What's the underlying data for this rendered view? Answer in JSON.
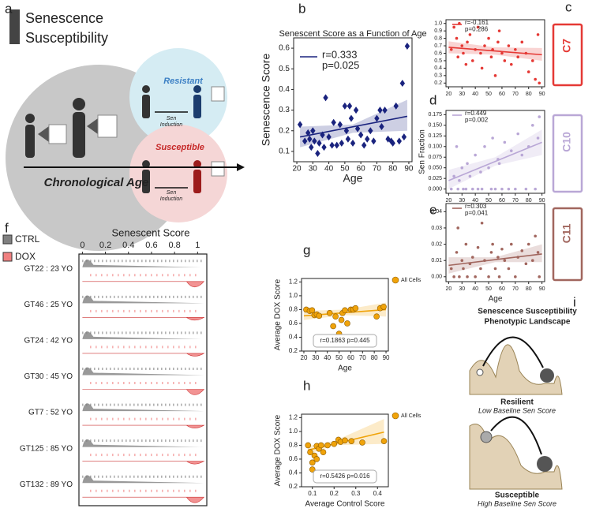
{
  "panel_letters": [
    "a",
    "b",
    "c",
    "d",
    "e",
    "f",
    "g",
    "h",
    "i"
  ],
  "diagram_a": {
    "title_line1": "Senescence",
    "title_line2": "Susceptibility",
    "resistant": "Resistant",
    "susceptible": "Susceptible",
    "induction_line1": "Sen",
    "induction_line2": "Induction",
    "axis": "Chronological Age"
  },
  "diagram_i": {
    "title_line1": "Senescence Susceptibility",
    "title_line2": "Phenotypic Landscape",
    "top_label": "Resilient",
    "top_sub": "Low Baseline Sen Score",
    "bottom_label": "Susceptible",
    "bottom_sub": "High Baseline Sen Score"
  },
  "chart_data": [
    {
      "type": "scatter",
      "title": "Senescent Score as a Function of Age",
      "xlabel": "Age",
      "ylabel": "Senescence Score",
      "xlim": [
        18,
        92
      ],
      "ylim": [
        0.05,
        0.65
      ],
      "xticks": [
        20,
        30,
        40,
        50,
        60,
        70,
        80,
        90
      ],
      "yticks": [
        0.1,
        0.2,
        0.3,
        0.4,
        0.5,
        0.6
      ],
      "series": [
        {
          "name": "Senescence Score",
          "color": "#1a237e",
          "x": [
            22,
            25,
            27,
            28,
            29,
            30,
            31,
            33,
            34,
            36,
            37,
            38,
            40,
            42,
            43,
            45,
            47,
            48,
            50,
            51,
            52,
            53,
            54,
            55,
            57,
            58,
            60,
            62,
            64,
            66,
            68,
            70,
            72,
            73,
            75,
            77,
            79,
            80,
            82,
            84,
            86,
            87,
            89
          ],
          "y": [
            0.23,
            0.15,
            0.19,
            0.16,
            0.12,
            0.2,
            0.15,
            0.09,
            0.14,
            0.18,
            0.12,
            0.36,
            0.17,
            0.13,
            0.24,
            0.13,
            0.23,
            0.14,
            0.32,
            0.2,
            0.16,
            0.32,
            0.26,
            0.14,
            0.3,
            0.21,
            0.18,
            0.13,
            0.16,
            0.2,
            0.15,
            0.26,
            0.3,
            0.22,
            0.3,
            0.16,
            0.15,
            0.14,
            0.32,
            0.15,
            0.43,
            0.17,
            0.61
          ]
        }
      ],
      "fit": {
        "x": [
          22,
          89
        ],
        "y": [
          0.17,
          0.27
        ]
      },
      "ci": {
        "x": [
          22,
          55,
          89
        ],
        "lower": [
          0.12,
          0.19,
          0.2
        ],
        "upper": [
          0.22,
          0.23,
          0.35
        ]
      },
      "annotations": [
        "r=0.333",
        "p=0.025"
      ]
    },
    {
      "type": "scatter",
      "cluster_label": "C7",
      "xlim": [
        18,
        92
      ],
      "ylim": [
        0.15,
        1.05
      ],
      "xticks": [
        20,
        30,
        40,
        50,
        60,
        70,
        80,
        90
      ],
      "yticks": [
        0.2,
        0.3,
        0.4,
        0.5,
        0.6,
        0.7,
        0.8,
        0.9,
        {
          "value": 1.0,
          "label": "1.0"
        }
      ],
      "series": [
        {
          "name": "C7",
          "color": "#e53935",
          "x": [
            22,
            24,
            26,
            27,
            28,
            30,
            31,
            33,
            34,
            36,
            38,
            40,
            42,
            44,
            45,
            47,
            50,
            52,
            53,
            55,
            57,
            58,
            60,
            62,
            65,
            67,
            70,
            72,
            75,
            78,
            80,
            83,
            85,
            87,
            88
          ],
          "y": [
            0.65,
            0.95,
            0.8,
            0.55,
            1.0,
            0.7,
            0.6,
            0.45,
            0.75,
            0.85,
            0.5,
            0.65,
            0.95,
            0.6,
            0.4,
            0.7,
            0.8,
            0.55,
            0.65,
            0.3,
            0.75,
            0.9,
            0.6,
            0.5,
            0.7,
            0.45,
            0.65,
            0.55,
            0.75,
            0.6,
            0.35,
            0.5,
            0.25,
            0.85,
            0.2
          ]
        }
      ],
      "fit": {
        "x": [
          20,
          90
        ],
        "y": [
          0.68,
          0.58
        ]
      },
      "ci": {
        "x": [
          20,
          55,
          90
        ],
        "lower": [
          0.6,
          0.58,
          0.5
        ],
        "upper": [
          0.76,
          0.68,
          0.67
        ]
      },
      "annotations": [
        "r=-0.161",
        "p=0.286"
      ]
    },
    {
      "type": "scatter",
      "cluster_label": "C10",
      "ylabel": "Sen Fraction",
      "xlim": [
        18,
        92
      ],
      "ylim": [
        -0.01,
        0.185
      ],
      "xticks": [
        20,
        30,
        40,
        50,
        60,
        70,
        80,
        90
      ],
      "yticks": [
        {
          "value": 0,
          "label": "0.000"
        },
        {
          "value": 0.025,
          "label": "0.025"
        },
        {
          "value": 0.05,
          "label": "0.050"
        },
        {
          "value": 0.075,
          "label": "0.075"
        },
        {
          "value": 0.1,
          "label": "0.100"
        },
        {
          "value": 0.125,
          "label": "0.125"
        },
        {
          "value": 0.15,
          "label": "0.150"
        },
        {
          "value": 0.175,
          "label": "0.175"
        }
      ],
      "series": [
        {
          "name": "C10",
          "color": "#b9a7d6",
          "x": [
            22,
            24,
            26,
            27,
            28,
            30,
            31,
            33,
            34,
            36,
            38,
            40,
            42,
            44,
            45,
            47,
            50,
            52,
            53,
            55,
            57,
            58,
            60,
            62,
            65,
            67,
            70,
            72,
            75,
            78,
            80,
            83,
            85,
            87,
            88
          ],
          "y": [
            0.0,
            0.03,
            0.1,
            0.0,
            0.02,
            0.05,
            0.0,
            0.0,
            0.06,
            0.03,
            0.0,
            0.08,
            0.0,
            0.04,
            0.0,
            0.1,
            0.05,
            0.0,
            0.12,
            0.0,
            0.07,
            0.06,
            0.0,
            0.11,
            0.0,
            0.09,
            0.0,
            0.13,
            0.08,
            0.0,
            0.1,
            0.15,
            0.0,
            0.12,
            0.17
          ]
        }
      ],
      "fit": {
        "x": [
          20,
          90
        ],
        "y": [
          0.02,
          0.11
        ]
      },
      "ci": {
        "x": [
          20,
          55,
          90
        ],
        "lower": [
          0.0,
          0.055,
          0.08
        ],
        "upper": [
          0.045,
          0.075,
          0.14
        ]
      },
      "annotations": [
        "r=0.449",
        "p=0.002"
      ]
    },
    {
      "type": "scatter",
      "cluster_label": "C11",
      "xlabel": "Age",
      "xlim": [
        18,
        92
      ],
      "ylim": [
        -0.003,
        0.045
      ],
      "xticks": [
        20,
        30,
        40,
        50,
        60,
        70,
        80,
        90
      ],
      "yticks": [
        {
          "value": 0,
          "label": "0.00"
        },
        {
          "value": 0.01,
          "label": "0.01"
        },
        {
          "value": 0.02,
          "label": "0.02"
        },
        {
          "value": 0.03,
          "label": "0.03"
        },
        {
          "value": 0.04,
          "label": "0.04"
        }
      ],
      "series": [
        {
          "name": "C11",
          "color": "#a1665e",
          "x": [
            22,
            24,
            26,
            27,
            28,
            30,
            31,
            33,
            34,
            36,
            38,
            40,
            42,
            44,
            45,
            47,
            50,
            52,
            53,
            55,
            57,
            58,
            60,
            62,
            65,
            67,
            70,
            72,
            75,
            78,
            80,
            83,
            85,
            87,
            88
          ],
          "y": [
            0.005,
            0.0,
            0.015,
            0.03,
            0.0,
            0.01,
            0.005,
            0.02,
            0.0,
            0.008,
            0.012,
            0.0,
            0.018,
            0.005,
            0.033,
            0.01,
            0.0,
            0.015,
            0.02,
            0.005,
            0.012,
            0.0,
            0.017,
            0.01,
            0.005,
            0.02,
            0.0,
            0.012,
            0.016,
            0.008,
            0.02,
            0.01,
            0.025,
            0.015,
            0.0
          ]
        }
      ],
      "fit": {
        "x": [
          20,
          90
        ],
        "y": [
          0.007,
          0.014
        ]
      },
      "ci": {
        "x": [
          20,
          55,
          90
        ],
        "lower": [
          0.002,
          0.009,
          0.009
        ],
        "upper": [
          0.012,
          0.012,
          0.02
        ]
      },
      "annotations": [
        "r=0.303",
        "p=0.041"
      ]
    },
    {
      "type": "raincloud",
      "title": "Senescent Score",
      "xlim": [
        -0.03,
        1.08
      ],
      "xticks": [
        0,
        0.2,
        0.4,
        0.6,
        0.8,
        1
      ],
      "categories": [
        "GT22 : 23 YO",
        "GT46 : 25 YO",
        "GT24 : 42 YO",
        "GT30 : 45 YO",
        "GT7 : 52 YO",
        "GT125 : 85 YO",
        "GT132 : 89 YO"
      ],
      "series": [
        {
          "name": "CTRL",
          "color": "#808080"
        },
        {
          "name": "DOX",
          "color": "#f08080"
        }
      ]
    },
    {
      "type": "scatter",
      "xlabel": "Age",
      "ylabel": "Average DOX Score",
      "xlim": [
        18,
        92
      ],
      "ylim": [
        0.2,
        1.25
      ],
      "xticks": [
        20,
        30,
        40,
        50,
        60,
        70,
        80,
        90
      ],
      "yticks": [
        0.2,
        0.4,
        0.6,
        0.8,
        {
          "value": 1.0,
          "label": "1.0"
        },
        1.2
      ],
      "series": [
        {
          "name": "All Cells",
          "color": "#f0a30a",
          "x": [
            22,
            25,
            27,
            29,
            31,
            33,
            42,
            45,
            47,
            50,
            52,
            53,
            55,
            57,
            60,
            62,
            64,
            82,
            85,
            88
          ],
          "y": [
            0.8,
            0.78,
            0.79,
            0.72,
            0.73,
            0.71,
            0.75,
            0.56,
            0.7,
            0.45,
            0.65,
            0.75,
            0.79,
            0.6,
            0.8,
            0.8,
            0.82,
            0.7,
            0.82,
            0.84
          ]
        }
      ],
      "fit": {
        "x": [
          20,
          90
        ],
        "y": [
          0.71,
          0.8
        ]
      },
      "ci": {
        "x": [
          20,
          55,
          90
        ],
        "lower": [
          0.65,
          0.72,
          0.7
        ],
        "upper": [
          0.78,
          0.8,
          0.9
        ]
      },
      "annotations": [
        "r=0.1863 p=0.445"
      ]
    },
    {
      "type": "scatter",
      "xlabel": "Average Control Score",
      "ylabel": "Average DOX Score",
      "xlim": [
        0.05,
        0.45
      ],
      "ylim": [
        0.2,
        1.25
      ],
      "xticks": [
        0.1,
        0.2,
        0.3,
        0.4
      ],
      "yticks": [
        0.2,
        0.4,
        0.6,
        0.8,
        {
          "value": 1.0,
          "label": "1.0"
        },
        1.2
      ],
      "series": [
        {
          "name": "All Cells",
          "color": "#f0a30a",
          "x": [
            0.08,
            0.09,
            0.1,
            0.1,
            0.11,
            0.12,
            0.12,
            0.13,
            0.14,
            0.15,
            0.17,
            0.2,
            0.22,
            0.23,
            0.25,
            0.28,
            0.33,
            0.43
          ],
          "y": [
            0.8,
            0.7,
            0.55,
            0.45,
            0.65,
            0.79,
            0.6,
            0.75,
            0.8,
            0.7,
            0.8,
            0.82,
            0.88,
            0.85,
            0.87,
            0.86,
            0.84,
            0.86
          ]
        }
      ],
      "fit": {
        "x": [
          0.08,
          0.43
        ],
        "y": [
          0.73,
          0.99
        ]
      },
      "ci": {
        "x": [
          0.08,
          0.2,
          0.43
        ],
        "lower": [
          0.67,
          0.8,
          0.82
        ],
        "upper": [
          0.79,
          0.86,
          1.18
        ]
      },
      "annotations": [
        "r=0.5426 p=0.016"
      ]
    }
  ]
}
